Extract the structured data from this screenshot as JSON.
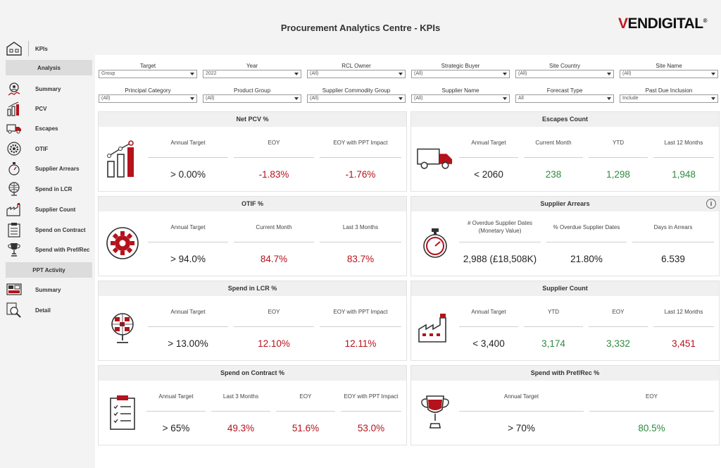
{
  "header": {
    "title": "Procurement Analytics Centre - KPIs",
    "logo_v": "V",
    "logo_rest": "ENDIGITAL",
    "logo_mark": "®"
  },
  "sidebar": {
    "kpis_label": "KPIs",
    "analysis_head": "Analysis",
    "items": [
      {
        "label": "Summary",
        "icon": "person-chart-icon"
      },
      {
        "label": "PCV",
        "icon": "bar-chart-icon"
      },
      {
        "label": "Escapes",
        "icon": "truck-icon"
      },
      {
        "label": "OTIF",
        "icon": "gear-icon"
      },
      {
        "label": "Supplier Arrears",
        "icon": "stopwatch-icon"
      },
      {
        "label": "Spend in LCR",
        "icon": "globe-icon"
      },
      {
        "label": "Supplier Count",
        "icon": "factory-icon"
      },
      {
        "label": "Spend on Contract",
        "icon": "clipboard-icon"
      },
      {
        "label": "Spend with Pref/Rec",
        "icon": "trophy-icon"
      }
    ],
    "ppt_head": "PPT Activity",
    "ppt_items": [
      {
        "label": "Summary",
        "icon": "dashboard-icon"
      },
      {
        "label": "Detail",
        "icon": "magnifier-icon"
      }
    ]
  },
  "filters": [
    {
      "label": "Target",
      "value": "Group"
    },
    {
      "label": "Year",
      "value": "2022"
    },
    {
      "label": "RCL Owner",
      "value": "(All)"
    },
    {
      "label": "Strategic Buyer",
      "value": "(All)"
    },
    {
      "label": "Site Country",
      "value": "(All)"
    },
    {
      "label": "Site Name",
      "value": "(All)"
    },
    {
      "label": "Principal Category",
      "value": "(All)"
    },
    {
      "label": "Product Group",
      "value": "(All)"
    },
    {
      "label": "Supplier Commodity Group",
      "value": "(All)"
    },
    {
      "label": "Supplier Name",
      "value": "(All)"
    },
    {
      "label": "Forecast Type",
      "value": "All"
    },
    {
      "label": "Past Due Inclusion",
      "value": "Include"
    }
  ],
  "cards": {
    "net_pcv": {
      "title": "Net PCV %",
      "metrics": [
        {
          "label": "Annual Target",
          "value": "> 0.00%"
        },
        {
          "label": "EOY",
          "value": "-1.83%"
        },
        {
          "label": "EOY with PPT Impact",
          "value": "-1.76%"
        }
      ]
    },
    "escapes": {
      "title": "Escapes Count",
      "metrics": [
        {
          "label": "Annual Target",
          "value": "< 2060"
        },
        {
          "label": "Current Month",
          "value": "238"
        },
        {
          "label": "YTD",
          "value": "1,298"
        },
        {
          "label": "Last 12 Months",
          "value": "1,948"
        }
      ]
    },
    "otif": {
      "title": "OTIF %",
      "metrics": [
        {
          "label": "Annual Target",
          "value": "> 94.0%"
        },
        {
          "label": "Current Month",
          "value": "84.7%"
        },
        {
          "label": "Last 3 Months",
          "value": "83.7%"
        }
      ]
    },
    "arrears": {
      "title": "Supplier Arrears",
      "info": "i",
      "metrics": [
        {
          "label": "# Overdue Supplier Dates",
          "label2": "(Monetary Value)",
          "value": "2,988 (£18,508K)"
        },
        {
          "label": "% Overdue Supplier Dates",
          "value": "21.80%"
        },
        {
          "label": "Days in Arrears",
          "value": "6.539"
        }
      ]
    },
    "lcr": {
      "title": "Spend in LCR %",
      "metrics": [
        {
          "label": "Annual Target",
          "value": "> 13.00%"
        },
        {
          "label": "EOY",
          "value": "12.10%"
        },
        {
          "label": "EOY with PPT Impact",
          "value": "12.11%"
        }
      ]
    },
    "supplier_count": {
      "title": "Supplier Count",
      "metrics": [
        {
          "label": "Annual Target",
          "value": "< 3,400"
        },
        {
          "label": "YTD",
          "value": "3,174"
        },
        {
          "label": "EOY",
          "value": "3,332"
        },
        {
          "label": "Last 12 Months",
          "value": "3,451"
        }
      ]
    },
    "contract": {
      "title": "Spend on Contract %",
      "metrics": [
        {
          "label": "Annual Target",
          "value": "> 65%"
        },
        {
          "label": "Last 3 Months",
          "value": "49.3%"
        },
        {
          "label": "EOY",
          "value": "51.6%"
        },
        {
          "label": "EOY with PPT Impact",
          "value": "53.0%"
        }
      ]
    },
    "pref": {
      "title": "Spend with Pref/Rec %",
      "metrics": [
        {
          "label": "Annual Target",
          "value": "> 70%"
        },
        {
          "label": "EOY",
          "value": "80.5%"
        }
      ]
    }
  },
  "colors": {
    "red": "#b5121b",
    "green": "#2e8b3e",
    "accent": "#c0171d"
  }
}
